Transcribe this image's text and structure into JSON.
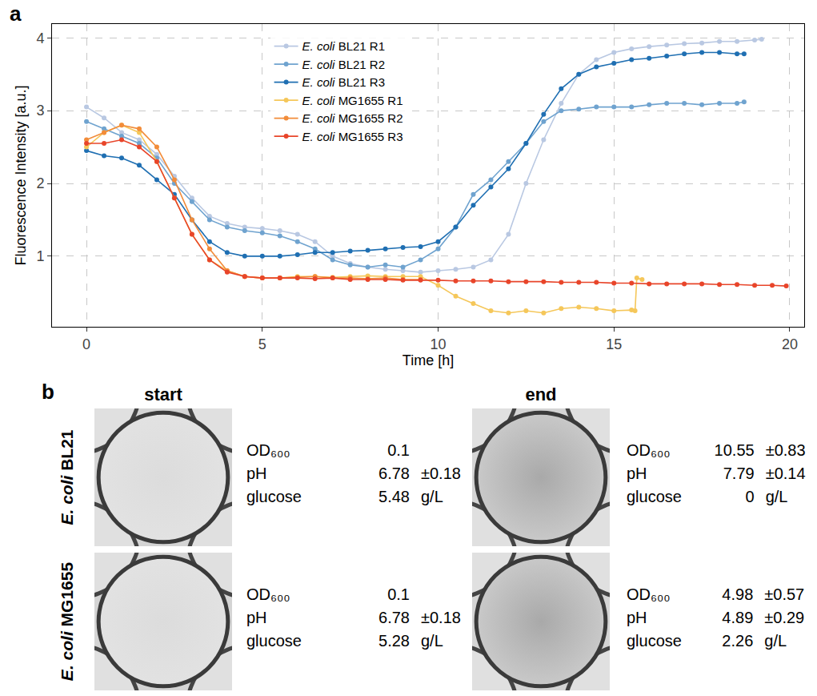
{
  "chart_data": {
    "type": "line",
    "title": "a",
    "x_label": "Time [h]",
    "y_label": "Fluorescence Intensity [a.u.]",
    "xlim": [
      -0.98,
      20.41
    ],
    "xticks": [
      0,
      5,
      10,
      15,
      20
    ],
    "ylim": [
      0.03,
      4.19
    ],
    "yticks": [
      1,
      2,
      3,
      4
    ],
    "grid": true,
    "legend": "top",
    "marker": "circle",
    "series": [
      {
        "name": "E. coli BL21 R1",
        "color": "#b9c8e2",
        "x": [
          0,
          0.5,
          1,
          1.5,
          2,
          2.5,
          3,
          3.5,
          4,
          4.5,
          5,
          5.5,
          6,
          6.5,
          7,
          7.5,
          8,
          8.5,
          9,
          9.5,
          10,
          10.5,
          11,
          11.5,
          12,
          12.5,
          13,
          13.5,
          14,
          14.5,
          15,
          15.5,
          16,
          16.5,
          17,
          17.5,
          18,
          18.5,
          19,
          19.2
        ],
        "values": [
          3.05,
          2.9,
          2.7,
          2.6,
          2.4,
          2.1,
          1.8,
          1.55,
          1.45,
          1.4,
          1.38,
          1.35,
          1.3,
          1.2,
          1.0,
          0.9,
          0.85,
          0.82,
          0.8,
          0.78,
          0.8,
          0.82,
          0.85,
          0.95,
          1.3,
          2.0,
          2.6,
          3.1,
          3.5,
          3.7,
          3.8,
          3.85,
          3.88,
          3.9,
          3.92,
          3.93,
          3.95,
          3.95,
          3.97,
          3.98
        ]
      },
      {
        "name": "E. coli BL21 R2",
        "color": "#6fa3cf",
        "x": [
          0,
          0.5,
          1,
          1.5,
          2,
          2.5,
          3,
          3.5,
          4,
          4.5,
          5,
          5.5,
          6,
          6.5,
          7,
          7.5,
          8,
          8.5,
          9,
          9.5,
          10,
          10.5,
          11,
          11.5,
          12,
          12.5,
          13,
          13.5,
          14,
          14.5,
          15,
          15.5,
          16,
          16.5,
          17,
          17.5,
          18,
          18.5,
          18.7
        ],
        "values": [
          2.85,
          2.75,
          2.65,
          2.55,
          2.35,
          2.0,
          1.75,
          1.5,
          1.4,
          1.35,
          1.32,
          1.28,
          1.2,
          1.1,
          0.95,
          0.88,
          0.85,
          0.88,
          0.85,
          0.95,
          1.1,
          1.4,
          1.85,
          2.05,
          2.3,
          2.55,
          2.85,
          3.0,
          3.02,
          3.05,
          3.05,
          3.05,
          3.08,
          3.1,
          3.1,
          3.08,
          3.1,
          3.1,
          3.12
        ]
      },
      {
        "name": "E. coli BL21 R3",
        "color": "#1f6fb2",
        "x": [
          0,
          0.5,
          1,
          1.5,
          2,
          2.5,
          3,
          3.5,
          4,
          4.5,
          5,
          5.5,
          6,
          6.5,
          7,
          7.5,
          8,
          8.5,
          9,
          9.5,
          10,
          10.5,
          11,
          11.5,
          12,
          12.5,
          13,
          13.5,
          14,
          14.5,
          15,
          15.5,
          16,
          16.5,
          17,
          17.5,
          18,
          18.5,
          18.7
        ],
        "values": [
          2.45,
          2.38,
          2.35,
          2.25,
          2.05,
          1.85,
          1.5,
          1.2,
          1.05,
          1.0,
          1.0,
          1.0,
          1.02,
          1.05,
          1.05,
          1.07,
          1.08,
          1.1,
          1.12,
          1.13,
          1.2,
          1.4,
          1.7,
          1.95,
          2.2,
          2.55,
          2.95,
          3.3,
          3.5,
          3.6,
          3.65,
          3.7,
          3.72,
          3.75,
          3.78,
          3.8,
          3.8,
          3.78,
          3.78
        ]
      },
      {
        "name": "E. coli MG1655 R1",
        "color": "#f5c75a",
        "x": [
          0,
          0.5,
          1,
          1.5,
          2,
          2.5,
          3,
          3.5,
          4,
          4.5,
          5,
          5.5,
          6,
          6.5,
          7,
          7.5,
          8,
          8.5,
          9,
          9.5,
          10,
          10.5,
          11,
          11.5,
          12,
          12.5,
          13,
          13.5,
          14,
          14.5,
          15,
          15.5,
          15.6,
          15.65,
          15.8
        ],
        "values": [
          2.5,
          2.7,
          2.8,
          2.7,
          2.3,
          1.8,
          1.3,
          0.95,
          0.8,
          0.72,
          0.7,
          0.7,
          0.72,
          0.72,
          0.71,
          0.72,
          0.73,
          0.72,
          0.72,
          0.72,
          0.6,
          0.45,
          0.35,
          0.25,
          0.22,
          0.25,
          0.22,
          0.28,
          0.3,
          0.28,
          0.25,
          0.26,
          0.25,
          0.7,
          0.68
        ]
      },
      {
        "name": "E. coli MG1655 R2",
        "color": "#f28c3a",
        "x": [
          0,
          0.5,
          1,
          1.5,
          2,
          2.5,
          3,
          3.5,
          4,
          4.5,
          5,
          5.5,
          6,
          6.5,
          7,
          7.5,
          8,
          8.5,
          9,
          9.5
        ],
        "values": [
          2.6,
          2.7,
          2.8,
          2.75,
          2.5,
          2.05,
          1.5,
          1.1,
          0.8,
          0.72,
          0.7,
          0.7,
          0.71,
          0.72,
          0.7,
          0.7,
          0.69,
          0.7,
          0.68,
          0.68
        ]
      },
      {
        "name": "E. coli MG1655 R3",
        "color": "#e8452a",
        "x": [
          0,
          0.5,
          1,
          1.5,
          2,
          2.5,
          3,
          3.5,
          4,
          4.5,
          5,
          5.5,
          6,
          6.5,
          7,
          7.5,
          8,
          8.5,
          9,
          9.5,
          10,
          10.5,
          11,
          11.5,
          12,
          12.5,
          13,
          13.5,
          14,
          14.5,
          15,
          15.5,
          16,
          16.5,
          17,
          17.5,
          18,
          18.5,
          19,
          19.5,
          19.9
        ],
        "values": [
          2.55,
          2.55,
          2.6,
          2.5,
          2.3,
          1.8,
          1.3,
          0.95,
          0.78,
          0.72,
          0.7,
          0.7,
          0.7,
          0.69,
          0.7,
          0.68,
          0.68,
          0.68,
          0.67,
          0.67,
          0.67,
          0.66,
          0.66,
          0.66,
          0.65,
          0.65,
          0.65,
          0.64,
          0.64,
          0.64,
          0.63,
          0.63,
          0.62,
          0.62,
          0.62,
          0.62,
          0.61,
          0.61,
          0.6,
          0.6,
          0.59
        ]
      }
    ]
  },
  "panel_b": {
    "letter": "b",
    "columns": [
      "start",
      "end"
    ],
    "rows": [
      {
        "label": "E. coli BL21",
        "cells": [
          [
            {
              "name": "OD₆₀₀",
              "value": "0.1"
            },
            {
              "name": "pH",
              "value": "6.78",
              "sd": "±0.18"
            },
            {
              "name": "glucose",
              "value": "5.48",
              "unit": "g/L"
            }
          ],
          [
            {
              "name": "OD₆₀₀",
              "value": "10.55",
              "sd": "±0.83"
            },
            {
              "name": "pH",
              "value": "7.79",
              "sd": "±0.14"
            },
            {
              "name": "glucose",
              "value": "0",
              "unit": "g/L"
            }
          ]
        ]
      },
      {
        "label": "E. coli MG1655",
        "cells": [
          [
            {
              "name": "OD₆₀₀",
              "value": "0.1"
            },
            {
              "name": "pH",
              "value": "6.78",
              "sd": "±0.18"
            },
            {
              "name": "glucose",
              "value": "5.28",
              "unit": "g/L"
            }
          ],
          [
            {
              "name": "OD₆₀₀",
              "value": "4.98",
              "sd": "±0.57"
            },
            {
              "name": "pH",
              "value": "4.89",
              "sd": "±0.29"
            },
            {
              "name": "glucose",
              "value": "2.26",
              "unit": "g/L"
            }
          ]
        ]
      }
    ]
  }
}
